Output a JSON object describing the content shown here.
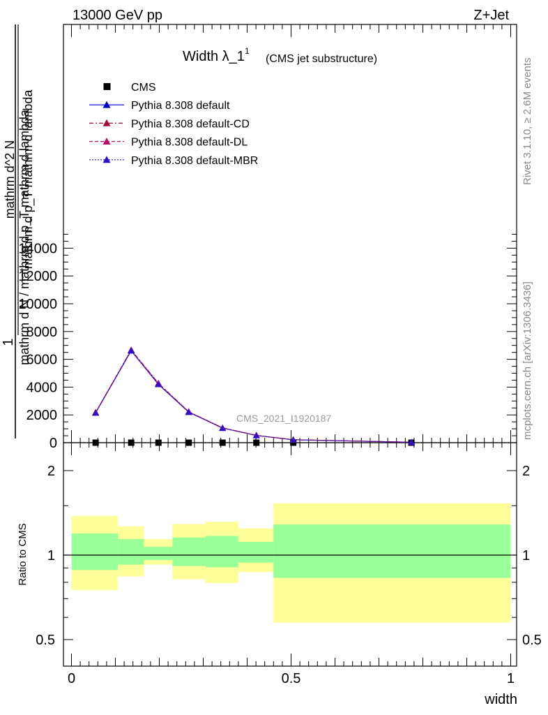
{
  "header": {
    "left": "13000 GeV pp",
    "right": "Z+Jet"
  },
  "side_text": {
    "rivet": "Rivet 3.1.10, ≥ 2.6M events",
    "mcplots": "mcplots.cern.ch [arXiv:1306.3436]"
  },
  "chart_data": [
    {
      "type": "line",
      "title_main": "Width λ_1",
      "title_sup": "1",
      "title_paren": "(CMS jet substructure)",
      "watermark": "CMS_2021_I1920187",
      "ylabel_numerator": "1",
      "ylabel_denominator": "mathrm d N / mathrm d p_T mathrm d lambda",
      "ylabel_numerator2": "mathrm d^2 N",
      "ylabel_denominator2": "mathrm d p_T mathrm d lambda",
      "xlim": [
        -0.02,
        1.02
      ],
      "ylim": [
        0,
        15000
      ],
      "yticks": [
        {
          "value": 0,
          "label": "0"
        },
        {
          "value": 2000,
          "label": "2000"
        },
        {
          "value": 4000,
          "label": "4000"
        },
        {
          "value": 6000,
          "label": "6000"
        },
        {
          "value": 8000,
          "label": "8000"
        },
        {
          "value": 10000,
          "label": "10000"
        },
        {
          "value": 12000,
          "label": "12000"
        },
        {
          "value": 14000,
          "label": "14000"
        }
      ],
      "legend": [
        {
          "name": "CMS",
          "style": "marker",
          "color": "#000000"
        },
        {
          "name": "Pythia 8.308 default",
          "style": "solid",
          "color": "#0000cc"
        },
        {
          "name": "Pythia 8.308 default-CD",
          "style": "dashdot",
          "color": "#a01030"
        },
        {
          "name": "Pythia 8.308 default-DL",
          "style": "dashed",
          "color": "#b0106a"
        },
        {
          "name": "Pythia 8.308 default-MBR",
          "style": "dotted",
          "color": "#3010c0"
        }
      ],
      "x": [
        0.055,
        0.136,
        0.198,
        0.267,
        0.344,
        0.421,
        0.505,
        0.774
      ],
      "series": [
        {
          "name": "CMS",
          "values": [
            0,
            0,
            0,
            0,
            0,
            0,
            0,
            0
          ]
        },
        {
          "name": "Pythia 8.308 default",
          "values": [
            2150,
            6620,
            4200,
            2200,
            1050,
            520,
            210,
            30
          ]
        },
        {
          "name": "Pythia 8.308 default-CD",
          "values": [
            2180,
            6680,
            4280,
            2230,
            1070,
            530,
            215,
            30
          ]
        },
        {
          "name": "Pythia 8.308 default-DL",
          "values": [
            2170,
            6660,
            4250,
            2220,
            1060,
            525,
            212,
            30
          ]
        },
        {
          "name": "Pythia 8.308 default-MBR",
          "values": [
            2150,
            6620,
            4200,
            2200,
            1050,
            520,
            210,
            30
          ]
        }
      ]
    },
    {
      "type": "area",
      "ylabel": "Ratio to CMS",
      "xlabel": "width",
      "xlim": [
        -0.02,
        1.02
      ],
      "ylim": [
        0.35,
        2.3
      ],
      "xticks": [
        {
          "value": 0,
          "label": "0"
        },
        {
          "value": 0.5,
          "label": "0.5"
        },
        {
          "value": 1,
          "label": "1"
        }
      ],
      "yticks": [
        {
          "value": 0.5,
          "label": "0.5"
        },
        {
          "value": 1,
          "label": "1"
        },
        {
          "value": 2,
          "label": "2"
        }
      ],
      "bins": [
        {
          "lo": 0.0,
          "hi": 0.106,
          "yellow": [
            0.75,
            1.38
          ],
          "green": [
            0.885,
            1.195
          ]
        },
        {
          "lo": 0.106,
          "hi": 0.165,
          "yellow": [
            0.84,
            1.265
          ],
          "green": [
            0.925,
            1.14
          ]
        },
        {
          "lo": 0.165,
          "hi": 0.23,
          "yellow": [
            0.925,
            1.14
          ],
          "green": [
            0.96,
            1.07
          ]
        },
        {
          "lo": 0.23,
          "hi": 0.305,
          "yellow": [
            0.82,
            1.29
          ],
          "green": [
            0.915,
            1.155
          ]
        },
        {
          "lo": 0.305,
          "hi": 0.38,
          "yellow": [
            0.795,
            1.315
          ],
          "green": [
            0.905,
            1.17
          ]
        },
        {
          "lo": 0.38,
          "hi": 0.46,
          "yellow": [
            0.87,
            1.245
          ],
          "green": [
            0.94,
            1.115
          ]
        },
        {
          "lo": 0.46,
          "hi": 1.0,
          "yellow": [
            0.575,
            1.53
          ],
          "green": [
            0.83,
            1.285
          ]
        }
      ],
      "reference": 1,
      "colors": {
        "yellow": "#ffff99",
        "green": "#99ff99"
      }
    }
  ]
}
